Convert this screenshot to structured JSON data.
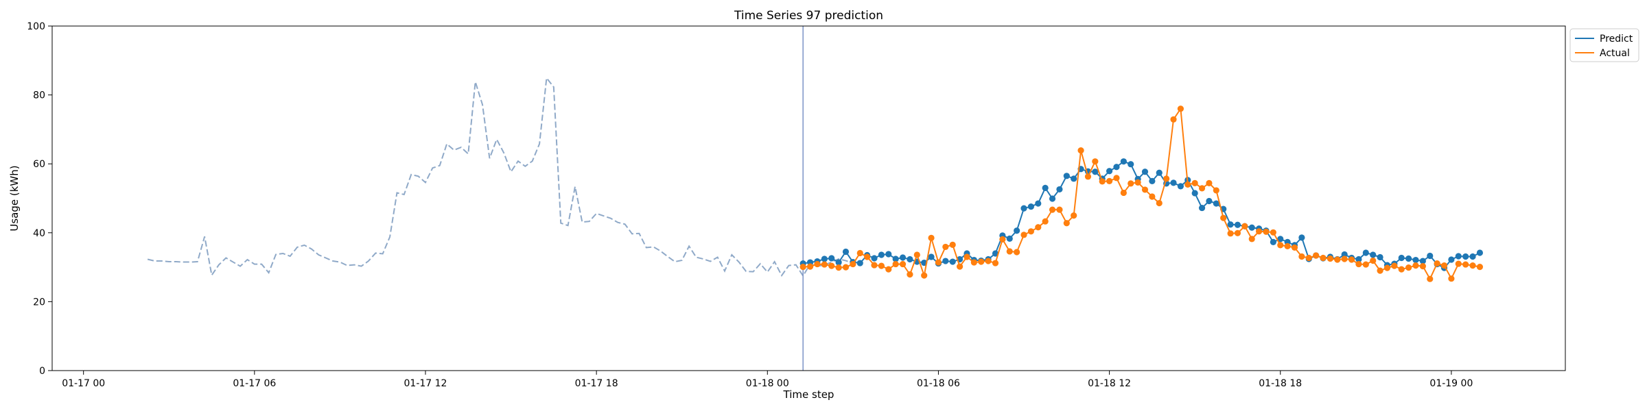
{
  "chart_data": {
    "type": "line",
    "title": "Time Series 97 prediction",
    "xlabel": "Time step",
    "ylabel": "Usage (kWh)",
    "ylim": [
      0,
      100
    ],
    "xlim": [
      "2024-01-16T22:54",
      "2024-01-19T04:00"
    ],
    "y_ticks": [
      0,
      20,
      40,
      60,
      80,
      100
    ],
    "x_ticks": [
      {
        "value": "2024-01-17T00:00",
        "label": "01-17 00"
      },
      {
        "value": "2024-01-17T06:00",
        "label": "01-17 06"
      },
      {
        "value": "2024-01-17T12:00",
        "label": "01-17 12"
      },
      {
        "value": "2024-01-17T18:00",
        "label": "01-17 18"
      },
      {
        "value": "2024-01-18T00:00",
        "label": "01-18 00"
      },
      {
        "value": "2024-01-18T06:00",
        "label": "01-18 06"
      },
      {
        "value": "2024-01-18T12:00",
        "label": "01-18 12"
      },
      {
        "value": "2024-01-18T18:00",
        "label": "01-18 18"
      },
      {
        "value": "2024-01-19T00:00",
        "label": "01-19 00"
      }
    ],
    "grid": false,
    "legend_position": "top-right outside",
    "history_start": "2024-01-17T02:15",
    "forecast_start": "2024-01-18T01:15",
    "step_minutes": 15,
    "history": {
      "color": "#8fa9c8",
      "style": "dashed",
      "values": [
        32.3,
        31.8,
        31.8,
        31.6,
        31.6,
        31.5,
        31.5,
        31.6,
        38.9,
        27.7,
        30.7,
        32.7,
        31.5,
        30.3,
        32.2,
        30.9,
        30.9,
        28.4,
        33.7,
        34.0,
        33.2,
        35.8,
        36.4,
        35.3,
        33.6,
        32.7,
        31.8,
        31.5,
        30.5,
        30.7,
        30.3,
        31.8,
        34.1,
        33.9,
        38.8,
        51.6,
        51.1,
        56.9,
        56.4,
        54.6,
        58.8,
        59.5,
        65.8,
        64.0,
        64.8,
        62.9,
        83.8,
        77.2,
        61.6,
        67.1,
        63.2,
        57.7,
        60.8,
        59.3,
        60.8,
        65.8,
        84.9,
        82.3,
        42.8,
        42.1,
        53.4,
        43.1,
        43.3,
        45.6,
        44.9,
        44.2,
        43.0,
        42.5,
        39.7,
        39.8,
        35.7,
        35.9,
        34.7,
        33.1,
        31.6,
        32.0,
        36.1,
        32.9,
        32.4,
        31.7,
        32.9,
        28.9,
        33.6,
        31.5,
        28.8,
        28.7,
        31.0,
        28.6,
        31.6,
        27.6,
        30.5,
        30.7,
        27.5,
        30.9,
        30.3,
        30.6,
        31.5,
        32.4,
        31.9,
        31.2
      ]
    },
    "series": [
      {
        "name": "Predict",
        "color": "#1f77b4",
        "values": [
          31.1,
          31.4,
          31.7,
          32.4,
          32.6,
          31.4,
          34.5,
          31.5,
          31.2,
          33.5,
          32.6,
          33.6,
          33.8,
          32.4,
          32.8,
          32.3,
          31.6,
          31.3,
          33.0,
          31.1,
          31.8,
          31.6,
          32.3,
          34.0,
          32.1,
          31.9,
          32.3,
          34.0,
          39.2,
          38.3,
          40.6,
          47.1,
          47.6,
          48.5,
          53.0,
          49.9,
          52.6,
          56.5,
          55.7,
          58.5,
          57.8,
          57.7,
          55.7,
          57.9,
          59.1,
          60.7,
          59.9,
          55.6,
          57.7,
          55.0,
          57.4,
          54.3,
          54.5,
          53.5,
          55.3,
          51.5,
          47.2,
          49.2,
          48.5,
          46.9,
          42.4,
          42.3,
          41.9,
          41.5,
          41.2,
          40.6,
          37.3,
          38.2,
          37.3,
          36.4,
          38.6,
          32.4,
          33.4,
          32.6,
          33.0,
          32.3,
          33.7,
          32.7,
          32.3,
          34.2,
          33.6,
          32.9,
          30.6,
          31.0,
          32.7,
          32.5,
          32.1,
          31.8,
          33.3,
          30.9,
          29.8,
          32.2,
          33.2,
          33.1,
          33.1,
          34.2
        ]
      },
      {
        "name": "Actual",
        "color": "#ff7f0e",
        "values": [
          30.1,
          30.2,
          30.9,
          30.8,
          30.4,
          29.9,
          30.0,
          30.9,
          34.1,
          33.0,
          30.6,
          30.4,
          29.4,
          30.9,
          30.9,
          27.9,
          33.6,
          27.6,
          38.5,
          31.4,
          35.9,
          36.5,
          30.2,
          33.0,
          31.4,
          31.6,
          31.8,
          31.2,
          38.1,
          34.6,
          34.4,
          39.4,
          40.4,
          41.6,
          43.3,
          46.7,
          46.7,
          42.8,
          45.0,
          63.9,
          56.3,
          60.7,
          54.9,
          55.0,
          55.9,
          51.6,
          54.3,
          54.6,
          52.5,
          50.5,
          48.6,
          55.7,
          72.9,
          76.0,
          54.0,
          54.4,
          52.9,
          54.4,
          52.3,
          44.3,
          39.8,
          39.9,
          41.9,
          38.2,
          40.4,
          40.3,
          40.1,
          36.4,
          36.1,
          35.7,
          33.1,
          32.7,
          33.4,
          32.7,
          32.5,
          32.2,
          32.4,
          32.2,
          30.9,
          30.8,
          31.9,
          29.0,
          29.8,
          30.4,
          29.4,
          29.9,
          30.5,
          30.3,
          26.6,
          31.1,
          30.5,
          26.7,
          31.0,
          30.8,
          30.5,
          30.1
        ]
      }
    ]
  }
}
